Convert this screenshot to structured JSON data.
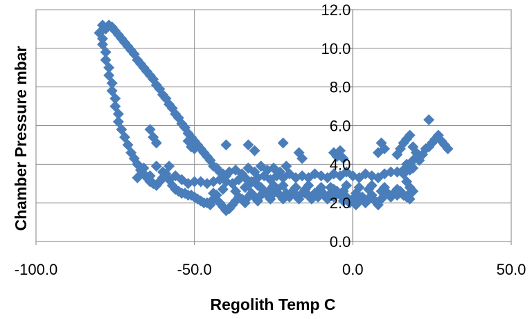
{
  "chart_data": {
    "type": "scatter",
    "title": "",
    "xlabel": "Regolith Temp C",
    "ylabel": "Chamber Pressure mbar",
    "xlim": [
      -100.0,
      50.0
    ],
    "ylim": [
      0.0,
      12.0
    ],
    "x_ticks": [
      "-100.0",
      "-50.0",
      "0.0",
      "50.0"
    ],
    "y_ticks": [
      "0.0",
      "2.0",
      "4.0",
      "6.0",
      "8.0",
      "10.0",
      "12.0"
    ],
    "grid": true,
    "legend": "none",
    "marker": "diamond",
    "marker_color": "#4a7ebb",
    "series": [
      {
        "points": [
          [
            -79,
            11.2
          ],
          [
            -78,
            11.0
          ],
          [
            -77,
            11.2
          ],
          [
            -76,
            11.1
          ],
          [
            -75,
            10.9
          ],
          [
            -74,
            10.7
          ],
          [
            -73,
            10.5
          ],
          [
            -72,
            10.3
          ],
          [
            -71,
            10.1
          ],
          [
            -70,
            9.9
          ],
          [
            -69,
            9.7
          ],
          [
            -68,
            9.4
          ],
          [
            -67,
            9.2
          ],
          [
            -66,
            9.0
          ],
          [
            -65,
            8.8
          ],
          [
            -64,
            8.6
          ],
          [
            -63,
            8.4
          ],
          [
            -62,
            8.1
          ],
          [
            -61,
            7.9
          ],
          [
            -60,
            7.6
          ],
          [
            -59,
            7.4
          ],
          [
            -58,
            7.1
          ],
          [
            -57,
            6.9
          ],
          [
            -56,
            6.6
          ],
          [
            -55,
            6.4
          ],
          [
            -54,
            6.1
          ],
          [
            -53,
            5.9
          ],
          [
            -52,
            5.6
          ],
          [
            -51,
            5.4
          ],
          [
            -50,
            5.2
          ],
          [
            -49,
            5.0
          ],
          [
            -48,
            4.8
          ],
          [
            -47,
            4.6
          ],
          [
            -46,
            4.4
          ],
          [
            -45,
            4.2
          ],
          [
            -44,
            3.9
          ],
          [
            -43,
            3.8
          ],
          [
            -42,
            3.6
          ],
          [
            -41,
            3.5
          ],
          [
            -40,
            3.4
          ],
          [
            -80,
            10.8
          ],
          [
            -79,
            10.5
          ],
          [
            -79,
            10.2
          ],
          [
            -78,
            9.8
          ],
          [
            -78,
            9.4
          ],
          [
            -77,
            9.0
          ],
          [
            -77,
            8.6
          ],
          [
            -76,
            8.2
          ],
          [
            -76,
            7.8
          ],
          [
            -75,
            7.4
          ],
          [
            -75,
            7.0
          ],
          [
            -74,
            6.6
          ],
          [
            -74,
            6.2
          ],
          [
            -73,
            5.8
          ],
          [
            -72,
            5.4
          ],
          [
            -71,
            5.0
          ],
          [
            -70,
            4.6
          ],
          [
            -69,
            4.3
          ],
          [
            -68,
            4.0
          ],
          [
            -67,
            3.7
          ],
          [
            -66,
            3.5
          ],
          [
            -65,
            3.3
          ],
          [
            -64,
            3.1
          ],
          [
            -63,
            3.0
          ],
          [
            -62,
            2.9
          ],
          [
            -61,
            3.1
          ],
          [
            -60,
            3.3
          ],
          [
            -59,
            3.5
          ],
          [
            -58,
            3.2
          ],
          [
            -57,
            2.9
          ],
          [
            -56,
            2.7
          ],
          [
            -55,
            2.6
          ],
          [
            -54,
            2.5
          ],
          [
            -53,
            2.5
          ],
          [
            -52,
            2.4
          ],
          [
            -51,
            2.4
          ],
          [
            -50,
            2.3
          ],
          [
            -49,
            2.2
          ],
          [
            -48,
            2.1
          ],
          [
            -47,
            2.0
          ],
          [
            -46,
            2.0
          ],
          [
            -45,
            1.9
          ],
          [
            -44,
            2.2
          ],
          [
            -43,
            2.4
          ],
          [
            -42,
            2.0
          ],
          [
            -41,
            1.8
          ],
          [
            -40,
            1.6
          ],
          [
            -39,
            1.7
          ],
          [
            -38,
            1.9
          ],
          [
            -37,
            2.1
          ],
          [
            -36,
            2.3
          ],
          [
            -35,
            2.2
          ],
          [
            -34,
            2.0
          ],
          [
            -33,
            2.3
          ],
          [
            -32,
            2.5
          ],
          [
            -31,
            2.3
          ],
          [
            -30,
            2.1
          ],
          [
            -29,
            2.4
          ],
          [
            -28,
            2.6
          ],
          [
            -27,
            2.4
          ],
          [
            -26,
            2.2
          ],
          [
            -25,
            2.5
          ],
          [
            -24,
            2.7
          ],
          [
            -23,
            2.4
          ],
          [
            -22,
            2.2
          ],
          [
            -21,
            2.5
          ],
          [
            -20,
            2.3
          ],
          [
            -19,
            2.6
          ],
          [
            -18,
            2.4
          ],
          [
            -17,
            2.2
          ],
          [
            -16,
            2.5
          ],
          [
            -15,
            2.7
          ],
          [
            -14,
            2.4
          ],
          [
            -13,
            2.2
          ],
          [
            -12,
            2.5
          ],
          [
            -11,
            2.3
          ],
          [
            -10,
            2.6
          ],
          [
            -9,
            2.4
          ],
          [
            -8,
            2.2
          ],
          [
            -7,
            2.5
          ],
          [
            -6,
            2.3
          ],
          [
            -5,
            2.6
          ],
          [
            -4,
            2.4
          ],
          [
            -3,
            2.1
          ],
          [
            -2,
            2.3
          ],
          [
            -1,
            2.0
          ],
          [
            0,
            2.2
          ],
          [
            1,
            1.9
          ],
          [
            2,
            2.1
          ],
          [
            3,
            2.3
          ],
          [
            4,
            2.0
          ],
          [
            5,
            2.2
          ],
          [
            6,
            2.4
          ],
          [
            7,
            2.1
          ],
          [
            8,
            1.9
          ],
          [
            9,
            2.2
          ],
          [
            10,
            2.4
          ],
          [
            11,
            2.5
          ],
          [
            12,
            2.3
          ],
          [
            13,
            2.5
          ],
          [
            14,
            2.4
          ],
          [
            15,
            2.6
          ],
          [
            16,
            2.4
          ],
          [
            17,
            2.3
          ],
          [
            18,
            2.5
          ],
          [
            -52,
            3.0
          ],
          [
            -50,
            3.1
          ],
          [
            -48,
            3.1
          ],
          [
            -46,
            3.0
          ],
          [
            -44,
            3.1
          ],
          [
            -42,
            3.2
          ],
          [
            -40,
            3.1
          ],
          [
            -38,
            3.0
          ],
          [
            -36,
            3.2
          ],
          [
            -34,
            3.3
          ],
          [
            -32,
            3.1
          ],
          [
            -30,
            3.3
          ],
          [
            -28,
            3.4
          ],
          [
            -26,
            3.2
          ],
          [
            -24,
            3.4
          ],
          [
            -22,
            3.3
          ],
          [
            -20,
            3.5
          ],
          [
            -18,
            3.3
          ],
          [
            -16,
            3.4
          ],
          [
            -14,
            3.3
          ],
          [
            -12,
            3.5
          ],
          [
            -10,
            3.4
          ],
          [
            -8,
            3.3
          ],
          [
            -6,
            3.5
          ],
          [
            -4,
            3.4
          ],
          [
            -2,
            3.6
          ],
          [
            0,
            3.4
          ],
          [
            2,
            3.3
          ],
          [
            4,
            3.5
          ],
          [
            6,
            3.4
          ],
          [
            8,
            3.3
          ],
          [
            10,
            3.5
          ],
          [
            12,
            3.6
          ],
          [
            14,
            3.6
          ],
          [
            16,
            3.7
          ],
          [
            18,
            3.7
          ],
          [
            19,
            3.8
          ],
          [
            -39,
            3.6
          ],
          [
            -37,
            3.7
          ],
          [
            -35,
            3.5
          ],
          [
            -33,
            3.8
          ],
          [
            -31,
            3.6
          ],
          [
            -29,
            3.9
          ],
          [
            -27,
            3.7
          ],
          [
            -25,
            3.8
          ],
          [
            -23,
            3.6
          ],
          [
            -21,
            3.9
          ],
          [
            -34,
            2.8
          ],
          [
            -30,
            2.9
          ],
          [
            -26,
            2.7
          ],
          [
            -22,
            2.9
          ],
          [
            -18,
            2.8
          ],
          [
            -14,
            2.9
          ],
          [
            -10,
            2.8
          ],
          [
            -6,
            2.7
          ],
          [
            -2,
            2.9
          ],
          [
            2,
            2.8
          ],
          [
            6,
            2.9
          ],
          [
            10,
            2.8
          ],
          [
            14,
            2.7
          ],
          [
            -68,
            3.3
          ],
          [
            -66,
            3.8
          ],
          [
            -64,
            3.4
          ],
          [
            -62,
            3.9
          ],
          [
            -60,
            3.6
          ],
          [
            -58,
            3.9
          ],
          [
            -56,
            3.4
          ],
          [
            -54,
            3.2
          ],
          [
            -64,
            5.8
          ],
          [
            -63,
            5.4
          ],
          [
            -62,
            5.1
          ],
          [
            -52,
            5.2
          ],
          [
            -51,
            4.9
          ],
          [
            -50,
            4.8
          ],
          [
            -40,
            5.0
          ],
          [
            -33,
            5.0
          ],
          [
            -31,
            4.7
          ],
          [
            -22,
            5.1
          ],
          [
            -17,
            4.6
          ],
          [
            -16,
            4.3
          ],
          [
            -6,
            4.6
          ],
          [
            -5,
            4.4
          ],
          [
            -4,
            4.7
          ],
          [
            -3,
            4.3
          ],
          [
            8,
            4.6
          ],
          [
            9,
            5.1
          ],
          [
            10,
            4.8
          ],
          [
            14,
            4.5
          ],
          [
            15,
            4.8
          ],
          [
            16,
            5.1
          ],
          [
            17,
            5.3
          ],
          [
            18,
            5.5
          ],
          [
            19,
            4.9
          ],
          [
            20,
            4.6
          ],
          [
            21,
            4.2
          ],
          [
            22,
            4.5
          ],
          [
            23,
            4.8
          ],
          [
            24,
            4.9
          ],
          [
            25,
            5.1
          ],
          [
            26,
            5.3
          ],
          [
            27,
            5.5
          ],
          [
            28,
            5.2
          ],
          [
            29,
            5.0
          ],
          [
            30,
            4.8
          ],
          [
            24,
            6.3
          ],
          [
            18,
            3.9
          ],
          [
            19,
            4.2
          ],
          [
            17,
            4.0
          ],
          [
            16,
            3.5
          ],
          [
            17,
            3.1
          ],
          [
            18,
            2.8
          ],
          [
            19,
            2.6
          ],
          [
            18,
            2.2
          ],
          [
            -44,
            2.5
          ],
          [
            -41,
            2.7
          ],
          [
            -37,
            2.6
          ],
          [
            -33,
            2.9
          ],
          [
            -29,
            2.8
          ],
          [
            -25,
            2.9
          ],
          [
            -15,
            2.5
          ],
          [
            -11,
            2.6
          ],
          [
            -7,
            2.8
          ],
          [
            -3,
            2.6
          ],
          [
            1,
            2.5
          ],
          [
            5,
            2.7
          ],
          [
            9,
            2.6
          ]
        ]
      }
    ]
  }
}
